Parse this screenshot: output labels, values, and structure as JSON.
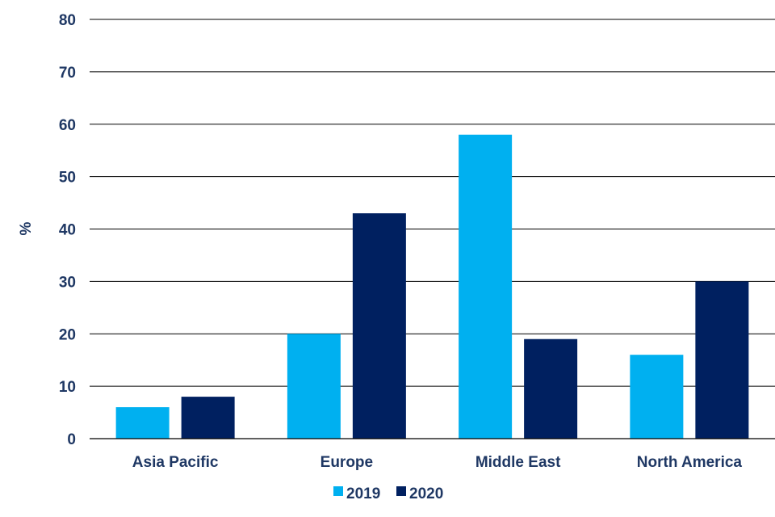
{
  "chart_data": {
    "type": "bar",
    "title": "",
    "xlabel": "",
    "ylabel": "%",
    "ylim": [
      0,
      80
    ],
    "yticks": [
      0,
      10,
      20,
      30,
      40,
      50,
      60,
      70,
      80
    ],
    "grid": true,
    "legend": "bottom",
    "categories": [
      "Asia Pacific",
      "Europe",
      "Middle East",
      "North America"
    ],
    "series": [
      {
        "name": "2019",
        "color": "#00b0f0",
        "values": [
          6,
          20,
          58,
          16
        ]
      },
      {
        "name": "2020",
        "color": "#002060",
        "values": [
          8,
          43,
          19,
          30
        ]
      }
    ]
  }
}
